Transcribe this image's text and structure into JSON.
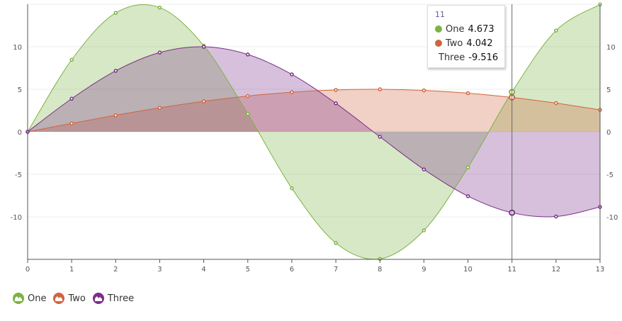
{
  "chart_data": {
    "type": "area",
    "x": [
      0,
      1,
      2,
      3,
      4,
      5,
      6,
      7,
      8,
      9,
      10,
      11,
      12,
      13
    ],
    "ylim": [
      -15,
      15
    ],
    "yticks": [
      -10,
      -5,
      0,
      5,
      10
    ],
    "ytick_labels": [
      "-10",
      "-5",
      "0",
      "5",
      "10"
    ],
    "xtick_labels": [
      "0",
      "1",
      "2",
      "3",
      "4",
      "5",
      "6",
      "7",
      "8",
      "9",
      "10",
      "11",
      "12",
      "13"
    ],
    "grid": true,
    "legend_position": "bottom-left",
    "series": [
      {
        "name": "One",
        "color": "#7cb342",
        "values": [
          0,
          8.469,
          13.981,
          14.608,
          10.132,
          2.117,
          -6.638,
          -13.074,
          -14.943,
          -11.592,
          -4.191,
          4.673,
          11.906,
          14.978
        ]
      },
      {
        "name": "Two",
        "color": "#d0643f",
        "values": [
          0,
          0.993,
          1.947,
          2.823,
          3.587,
          4.207,
          4.66,
          4.927,
          4.996,
          4.869,
          4.546,
          4.042,
          3.377,
          2.578
        ]
      },
      {
        "name": "Three",
        "color": "#7b2e8a",
        "values": [
          0,
          3.894,
          7.174,
          9.32,
          9.996,
          9.093,
          6.755,
          3.35,
          -0.584,
          -4.425,
          -7.568,
          -9.516,
          -9.962,
          -8.835
        ]
      }
    ],
    "tooltip": {
      "x": "11",
      "rows": [
        {
          "name": "One",
          "value": "4.673"
        },
        {
          "name": "Two",
          "value": "4.042"
        },
        {
          "name": "Three",
          "value": "-9.516"
        }
      ]
    },
    "hover_index": 11
  }
}
